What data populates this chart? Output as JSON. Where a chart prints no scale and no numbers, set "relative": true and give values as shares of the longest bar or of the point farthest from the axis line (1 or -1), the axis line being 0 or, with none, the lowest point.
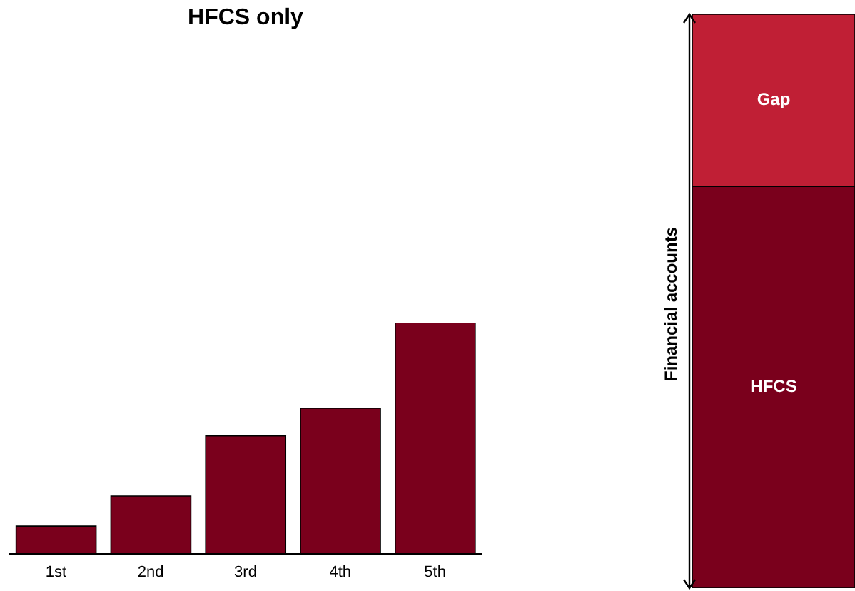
{
  "chart_data": [
    {
      "type": "bar",
      "title": "HFCS only",
      "categories": [
        "1st",
        "2nd",
        "3rd",
        "4th",
        "5th"
      ],
      "values": [
        0.12,
        0.25,
        0.51,
        0.63,
        1
      ],
      "color": "#7a001c",
      "relative": true
    },
    {
      "type": "bar",
      "stacked": true,
      "relative": true,
      "ylabel": "Financial accounts",
      "categories": [
        null
      ],
      "series": [
        {
          "name": "HFCS",
          "color": "#7a001c",
          "values": [
            0.7
          ]
        },
        {
          "name": "Gap",
          "color": "#c01f35",
          "values": [
            0.3
          ]
        }
      ]
    }
  ]
}
